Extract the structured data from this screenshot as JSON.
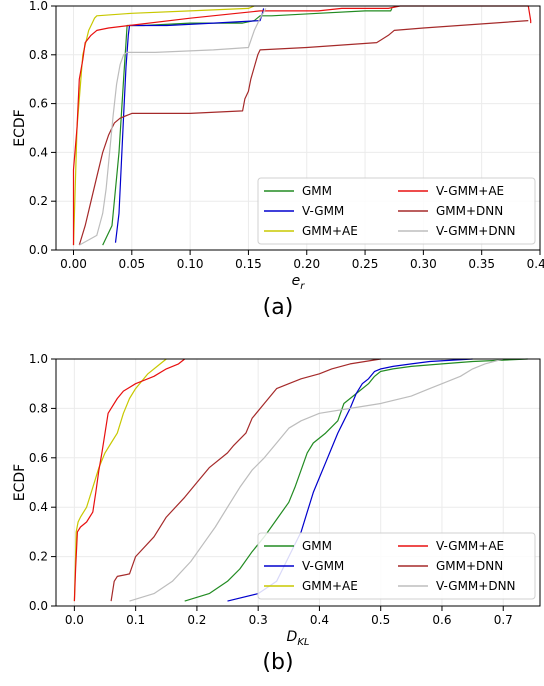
{
  "chart_data": [
    {
      "type": "line",
      "panel_label": "(a)",
      "xlabel": "e_r",
      "ylabel": "ECDF",
      "xlim": [
        -0.015,
        0.4
      ],
      "ylim": [
        0,
        1
      ],
      "xticks": [
        0.0,
        0.05,
        0.1,
        0.15,
        0.2,
        0.25,
        0.3,
        0.35,
        0.4
      ],
      "xtick_labels": [
        "0.00",
        "0.05",
        "0.10",
        "0.15",
        "0.20",
        "0.25",
        "0.30",
        "0.35",
        "0.40"
      ],
      "yticks": [
        0.0,
        0.2,
        0.4,
        0.6,
        0.8,
        1.0
      ],
      "ytick_labels": [
        "0.0",
        "0.2",
        "0.4",
        "0.6",
        "0.8",
        "1.0"
      ],
      "grid": true,
      "legend_position": "lower-right",
      "series": [
        {
          "name": "GMM",
          "color": "#228b22",
          "x": [
            0.025,
            0.033,
            0.036,
            0.039,
            0.041,
            0.043,
            0.045,
            0.046,
            0.06,
            0.1,
            0.145,
            0.155,
            0.16,
            0.17,
            0.21,
            0.25,
            0.272,
            0.273
          ],
          "y": [
            0.02,
            0.1,
            0.25,
            0.4,
            0.55,
            0.7,
            0.85,
            0.92,
            0.92,
            0.93,
            0.93,
            0.94,
            0.96,
            0.96,
            0.97,
            0.98,
            0.98,
            0.99
          ]
        },
        {
          "name": "V-GMM",
          "color": "#0000cd",
          "x": [
            0.036,
            0.039,
            0.041,
            0.043,
            0.045,
            0.047,
            0.048,
            0.08,
            0.12,
            0.16,
            0.162,
            0.163
          ],
          "y": [
            0.03,
            0.15,
            0.35,
            0.55,
            0.75,
            0.88,
            0.92,
            0.92,
            0.93,
            0.94,
            0.97,
            0.99
          ]
        },
        {
          "name": "GMM+AE",
          "color": "#c8c800",
          "x": [
            0.0,
            0.003,
            0.008,
            0.013,
            0.016,
            0.018,
            0.02,
            0.05,
            0.1,
            0.15,
            0.155
          ],
          "y": [
            0.02,
            0.5,
            0.8,
            0.9,
            0.93,
            0.95,
            0.96,
            0.97,
            0.98,
            0.99,
            1.0
          ]
        },
        {
          "name": "V-GMM+AE",
          "color": "#e81010",
          "x": [
            0.0,
            0.0,
            0.003,
            0.005,
            0.008,
            0.01,
            0.015,
            0.02,
            0.03,
            0.1,
            0.14,
            0.16,
            0.21,
            0.23,
            0.27,
            0.28,
            0.39,
            0.392,
            0.392
          ],
          "y": [
            0.02,
            0.33,
            0.5,
            0.7,
            0.78,
            0.85,
            0.88,
            0.9,
            0.91,
            0.95,
            0.97,
            0.98,
            0.98,
            0.99,
            0.99,
            1.0,
            1.0,
            0.94,
            0.93
          ]
        },
        {
          "name": "GMM+DNN",
          "color": "#a52a2a",
          "x": [
            0.005,
            0.01,
            0.015,
            0.02,
            0.025,
            0.03,
            0.035,
            0.04,
            0.05,
            0.1,
            0.145,
            0.147,
            0.15,
            0.152,
            0.155,
            0.158,
            0.16,
            0.2,
            0.26,
            0.27,
            0.275,
            0.3,
            0.39
          ],
          "y": [
            0.02,
            0.1,
            0.2,
            0.3,
            0.4,
            0.47,
            0.52,
            0.54,
            0.56,
            0.56,
            0.57,
            0.62,
            0.65,
            0.7,
            0.75,
            0.8,
            0.82,
            0.83,
            0.85,
            0.88,
            0.9,
            0.91,
            0.94
          ]
        },
        {
          "name": "V-GMM+DNN",
          "color": "#bdbdbd",
          "x": [
            0.005,
            0.02,
            0.025,
            0.028,
            0.031,
            0.034,
            0.037,
            0.04,
            0.043,
            0.046,
            0.07,
            0.12,
            0.15,
            0.155,
            0.16,
            0.165
          ],
          "y": [
            0.02,
            0.06,
            0.15,
            0.25,
            0.4,
            0.55,
            0.68,
            0.76,
            0.8,
            0.81,
            0.81,
            0.82,
            0.83,
            0.9,
            0.95,
            0.99
          ]
        }
      ]
    },
    {
      "type": "line",
      "panel_label": "(b)",
      "xlabel": "D_KL",
      "ylabel": "ECDF",
      "xlim": [
        -0.03,
        0.76
      ],
      "ylim": [
        0,
        1
      ],
      "xticks": [
        0.0,
        0.1,
        0.2,
        0.3,
        0.4,
        0.5,
        0.6,
        0.7
      ],
      "xtick_labels": [
        "0.0",
        "0.1",
        "0.2",
        "0.3",
        "0.4",
        "0.5",
        "0.6",
        "0.7"
      ],
      "yticks": [
        0.0,
        0.2,
        0.4,
        0.6,
        0.8,
        1.0
      ],
      "ytick_labels": [
        "0.0",
        "0.2",
        "0.4",
        "0.6",
        "0.8",
        "1.0"
      ],
      "grid": true,
      "legend_position": "lower-right",
      "series": [
        {
          "name": "GMM",
          "color": "#228b22",
          "x": [
            0.18,
            0.22,
            0.25,
            0.27,
            0.29,
            0.31,
            0.33,
            0.35,
            0.36,
            0.37,
            0.38,
            0.39,
            0.41,
            0.43,
            0.44,
            0.46,
            0.48,
            0.49,
            0.5,
            0.52,
            0.55,
            0.6,
            0.65,
            0.74
          ],
          "y": [
            0.02,
            0.05,
            0.1,
            0.15,
            0.22,
            0.28,
            0.35,
            0.42,
            0.48,
            0.55,
            0.62,
            0.66,
            0.7,
            0.75,
            0.82,
            0.86,
            0.9,
            0.93,
            0.95,
            0.96,
            0.97,
            0.98,
            0.99,
            1.0
          ]
        },
        {
          "name": "V-GMM",
          "color": "#0000cd",
          "x": [
            0.25,
            0.3,
            0.33,
            0.35,
            0.37,
            0.38,
            0.39,
            0.4,
            0.41,
            0.42,
            0.43,
            0.44,
            0.45,
            0.46,
            0.47,
            0.48,
            0.49,
            0.5,
            0.52,
            0.55,
            0.58,
            0.65
          ],
          "y": [
            0.02,
            0.05,
            0.1,
            0.2,
            0.3,
            0.38,
            0.46,
            0.52,
            0.58,
            0.64,
            0.7,
            0.75,
            0.8,
            0.86,
            0.9,
            0.92,
            0.95,
            0.96,
            0.97,
            0.98,
            0.99,
            1.0
          ]
        },
        {
          "name": "GMM+AE",
          "color": "#c8c800",
          "x": [
            0.0,
            0.003,
            0.006,
            0.01,
            0.02,
            0.03,
            0.04,
            0.05,
            0.06,
            0.07,
            0.08,
            0.09,
            0.1,
            0.12,
            0.14,
            0.15
          ],
          "y": [
            0.02,
            0.3,
            0.34,
            0.36,
            0.4,
            0.48,
            0.56,
            0.62,
            0.66,
            0.7,
            0.78,
            0.84,
            0.88,
            0.94,
            0.98,
            1.0
          ]
        },
        {
          "name": "V-GMM+AE",
          "color": "#e81010",
          "x": [
            0.0,
            0.002,
            0.005,
            0.01,
            0.02,
            0.03,
            0.035,
            0.04,
            0.045,
            0.05,
            0.055,
            0.06,
            0.07,
            0.08,
            0.1,
            0.13,
            0.15,
            0.17,
            0.18
          ],
          "y": [
            0.02,
            0.15,
            0.3,
            0.32,
            0.34,
            0.38,
            0.46,
            0.55,
            0.62,
            0.7,
            0.78,
            0.8,
            0.84,
            0.87,
            0.9,
            0.93,
            0.96,
            0.98,
            1.0
          ]
        },
        {
          "name": "GMM+DNN",
          "color": "#a52a2a",
          "x": [
            0.06,
            0.065,
            0.07,
            0.09,
            0.1,
            0.13,
            0.15,
            0.18,
            0.2,
            0.22,
            0.25,
            0.26,
            0.28,
            0.29,
            0.31,
            0.33,
            0.35,
            0.37,
            0.4,
            0.42,
            0.45,
            0.5
          ],
          "y": [
            0.02,
            0.1,
            0.12,
            0.13,
            0.2,
            0.28,
            0.36,
            0.44,
            0.5,
            0.56,
            0.62,
            0.65,
            0.7,
            0.76,
            0.82,
            0.88,
            0.9,
            0.92,
            0.94,
            0.96,
            0.98,
            1.0
          ]
        },
        {
          "name": "V-GMM+DNN",
          "color": "#bdbdbd",
          "x": [
            0.09,
            0.13,
            0.16,
            0.19,
            0.21,
            0.23,
            0.25,
            0.27,
            0.29,
            0.31,
            0.33,
            0.35,
            0.37,
            0.4,
            0.45,
            0.5,
            0.55,
            0.58,
            0.6,
            0.63,
            0.65,
            0.67,
            0.7
          ],
          "y": [
            0.02,
            0.05,
            0.1,
            0.18,
            0.25,
            0.32,
            0.4,
            0.48,
            0.55,
            0.6,
            0.66,
            0.72,
            0.75,
            0.78,
            0.8,
            0.82,
            0.85,
            0.88,
            0.9,
            0.93,
            0.96,
            0.98,
            1.0
          ]
        }
      ]
    }
  ]
}
